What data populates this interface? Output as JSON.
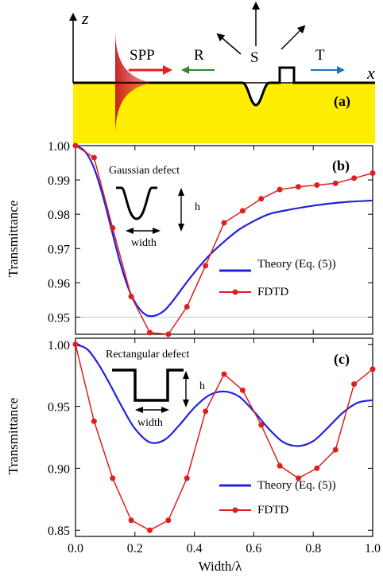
{
  "panel_a": {
    "label": "(a)",
    "axis_z": "z",
    "axis_x": "x",
    "spp_label": "SPP",
    "r_label": "R",
    "s_label": "S",
    "t_label": "T",
    "colors": {
      "metal": "#ffee00",
      "spp": "#d42020",
      "r_arrow": "#2a8a2a",
      "t_arrow": "#1f6fc0"
    }
  },
  "chart_data": [
    {
      "type": "line",
      "panel_label": "(b)",
      "xlabel": "",
      "ylabel": "Transmittance",
      "xlim": [
        0.0,
        1.0
      ],
      "ylim": [
        0.945,
        1.0
      ],
      "x_ticks": [
        0.0,
        0.2,
        0.4,
        0.6,
        0.8,
        1.0
      ],
      "y_ticks": [
        "1.00",
        "0.99",
        "0.98",
        "0.97",
        "0.96",
        "0.95"
      ],
      "y_tick_values": [
        1.0,
        0.99,
        0.98,
        0.97,
        0.96,
        0.95
      ],
      "inset_title": "Gaussian defect",
      "inset_h": "h",
      "inset_width": "width",
      "reference_line_y": 0.95,
      "series": [
        {
          "name": "Theory (Eq. (5))",
          "color": "#2222dd",
          "style": "line",
          "x": [
            0.0,
            0.03,
            0.06,
            0.09,
            0.12,
            0.15,
            0.18,
            0.21,
            0.24,
            0.27,
            0.3,
            0.33,
            0.36,
            0.4,
            0.45,
            0.5,
            0.55,
            0.6,
            0.65,
            0.7,
            0.8,
            0.9,
            1.0
          ],
          "y": [
            1.0,
            0.9985,
            0.994,
            0.986,
            0.976,
            0.966,
            0.958,
            0.953,
            0.9505,
            0.9505,
            0.952,
            0.955,
            0.9585,
            0.963,
            0.968,
            0.972,
            0.9755,
            0.978,
            0.98,
            0.981,
            0.9825,
            0.9835,
            0.984
          ]
        },
        {
          "name": "FDTD",
          "color": "#dd1f1f",
          "style": "line-marker",
          "x": [
            0.0,
            0.0625,
            0.125,
            0.1875,
            0.25,
            0.3125,
            0.375,
            0.4375,
            0.5,
            0.5625,
            0.625,
            0.6875,
            0.75,
            0.8125,
            0.875,
            0.9375,
            1.0
          ],
          "y": [
            1.0,
            0.9965,
            0.976,
            0.956,
            0.9455,
            0.945,
            0.953,
            0.965,
            0.9775,
            0.981,
            0.9845,
            0.9872,
            0.988,
            0.9885,
            0.989,
            0.9905,
            0.992
          ]
        }
      ]
    },
    {
      "type": "line",
      "panel_label": "(c)",
      "xlabel": "Width/λ",
      "ylabel": "Transmittance",
      "xlim": [
        0.0,
        1.0
      ],
      "ylim": [
        0.845,
        1.005
      ],
      "x_ticks": [
        0.0,
        0.2,
        0.4,
        0.6,
        0.8,
        1.0
      ],
      "x_tick_labels": [
        "0.0",
        "0.2",
        "0.4",
        "0.6",
        "0.8",
        "1.0"
      ],
      "y_ticks": [
        "1.00",
        "0.95",
        "0.90",
        "0.85"
      ],
      "y_tick_values": [
        1.0,
        0.95,
        0.9,
        0.85
      ],
      "inset_title": "Rectangular defect",
      "inset_h": "h",
      "inset_width": "width",
      "series": [
        {
          "name": "Theory (Eq. (5))",
          "color": "#2222dd",
          "style": "line",
          "x": [
            0.0,
            0.04,
            0.08,
            0.12,
            0.16,
            0.2,
            0.25,
            0.3,
            0.35,
            0.4,
            0.45,
            0.5,
            0.55,
            0.6,
            0.65,
            0.7,
            0.75,
            0.8,
            0.85,
            0.9,
            0.95,
            1.0
          ],
          "y": [
            1.0,
            0.996,
            0.983,
            0.966,
            0.948,
            0.932,
            0.921,
            0.923,
            0.935,
            0.949,
            0.959,
            0.962,
            0.958,
            0.946,
            0.932,
            0.921,
            0.918,
            0.922,
            0.933,
            0.945,
            0.953,
            0.955
          ]
        },
        {
          "name": "FDTD",
          "color": "#dd1f1f",
          "style": "line-marker",
          "x": [
            0.0,
            0.0625,
            0.125,
            0.1875,
            0.25,
            0.3125,
            0.375,
            0.4375,
            0.5,
            0.5625,
            0.625,
            0.6875,
            0.75,
            0.8125,
            0.875,
            0.9375,
            1.0
          ],
          "y": [
            1.0,
            0.938,
            0.892,
            0.858,
            0.85,
            0.858,
            0.892,
            0.946,
            0.976,
            0.963,
            0.935,
            0.902,
            0.892,
            0.9,
            0.915,
            0.968,
            0.98
          ]
        }
      ]
    }
  ]
}
